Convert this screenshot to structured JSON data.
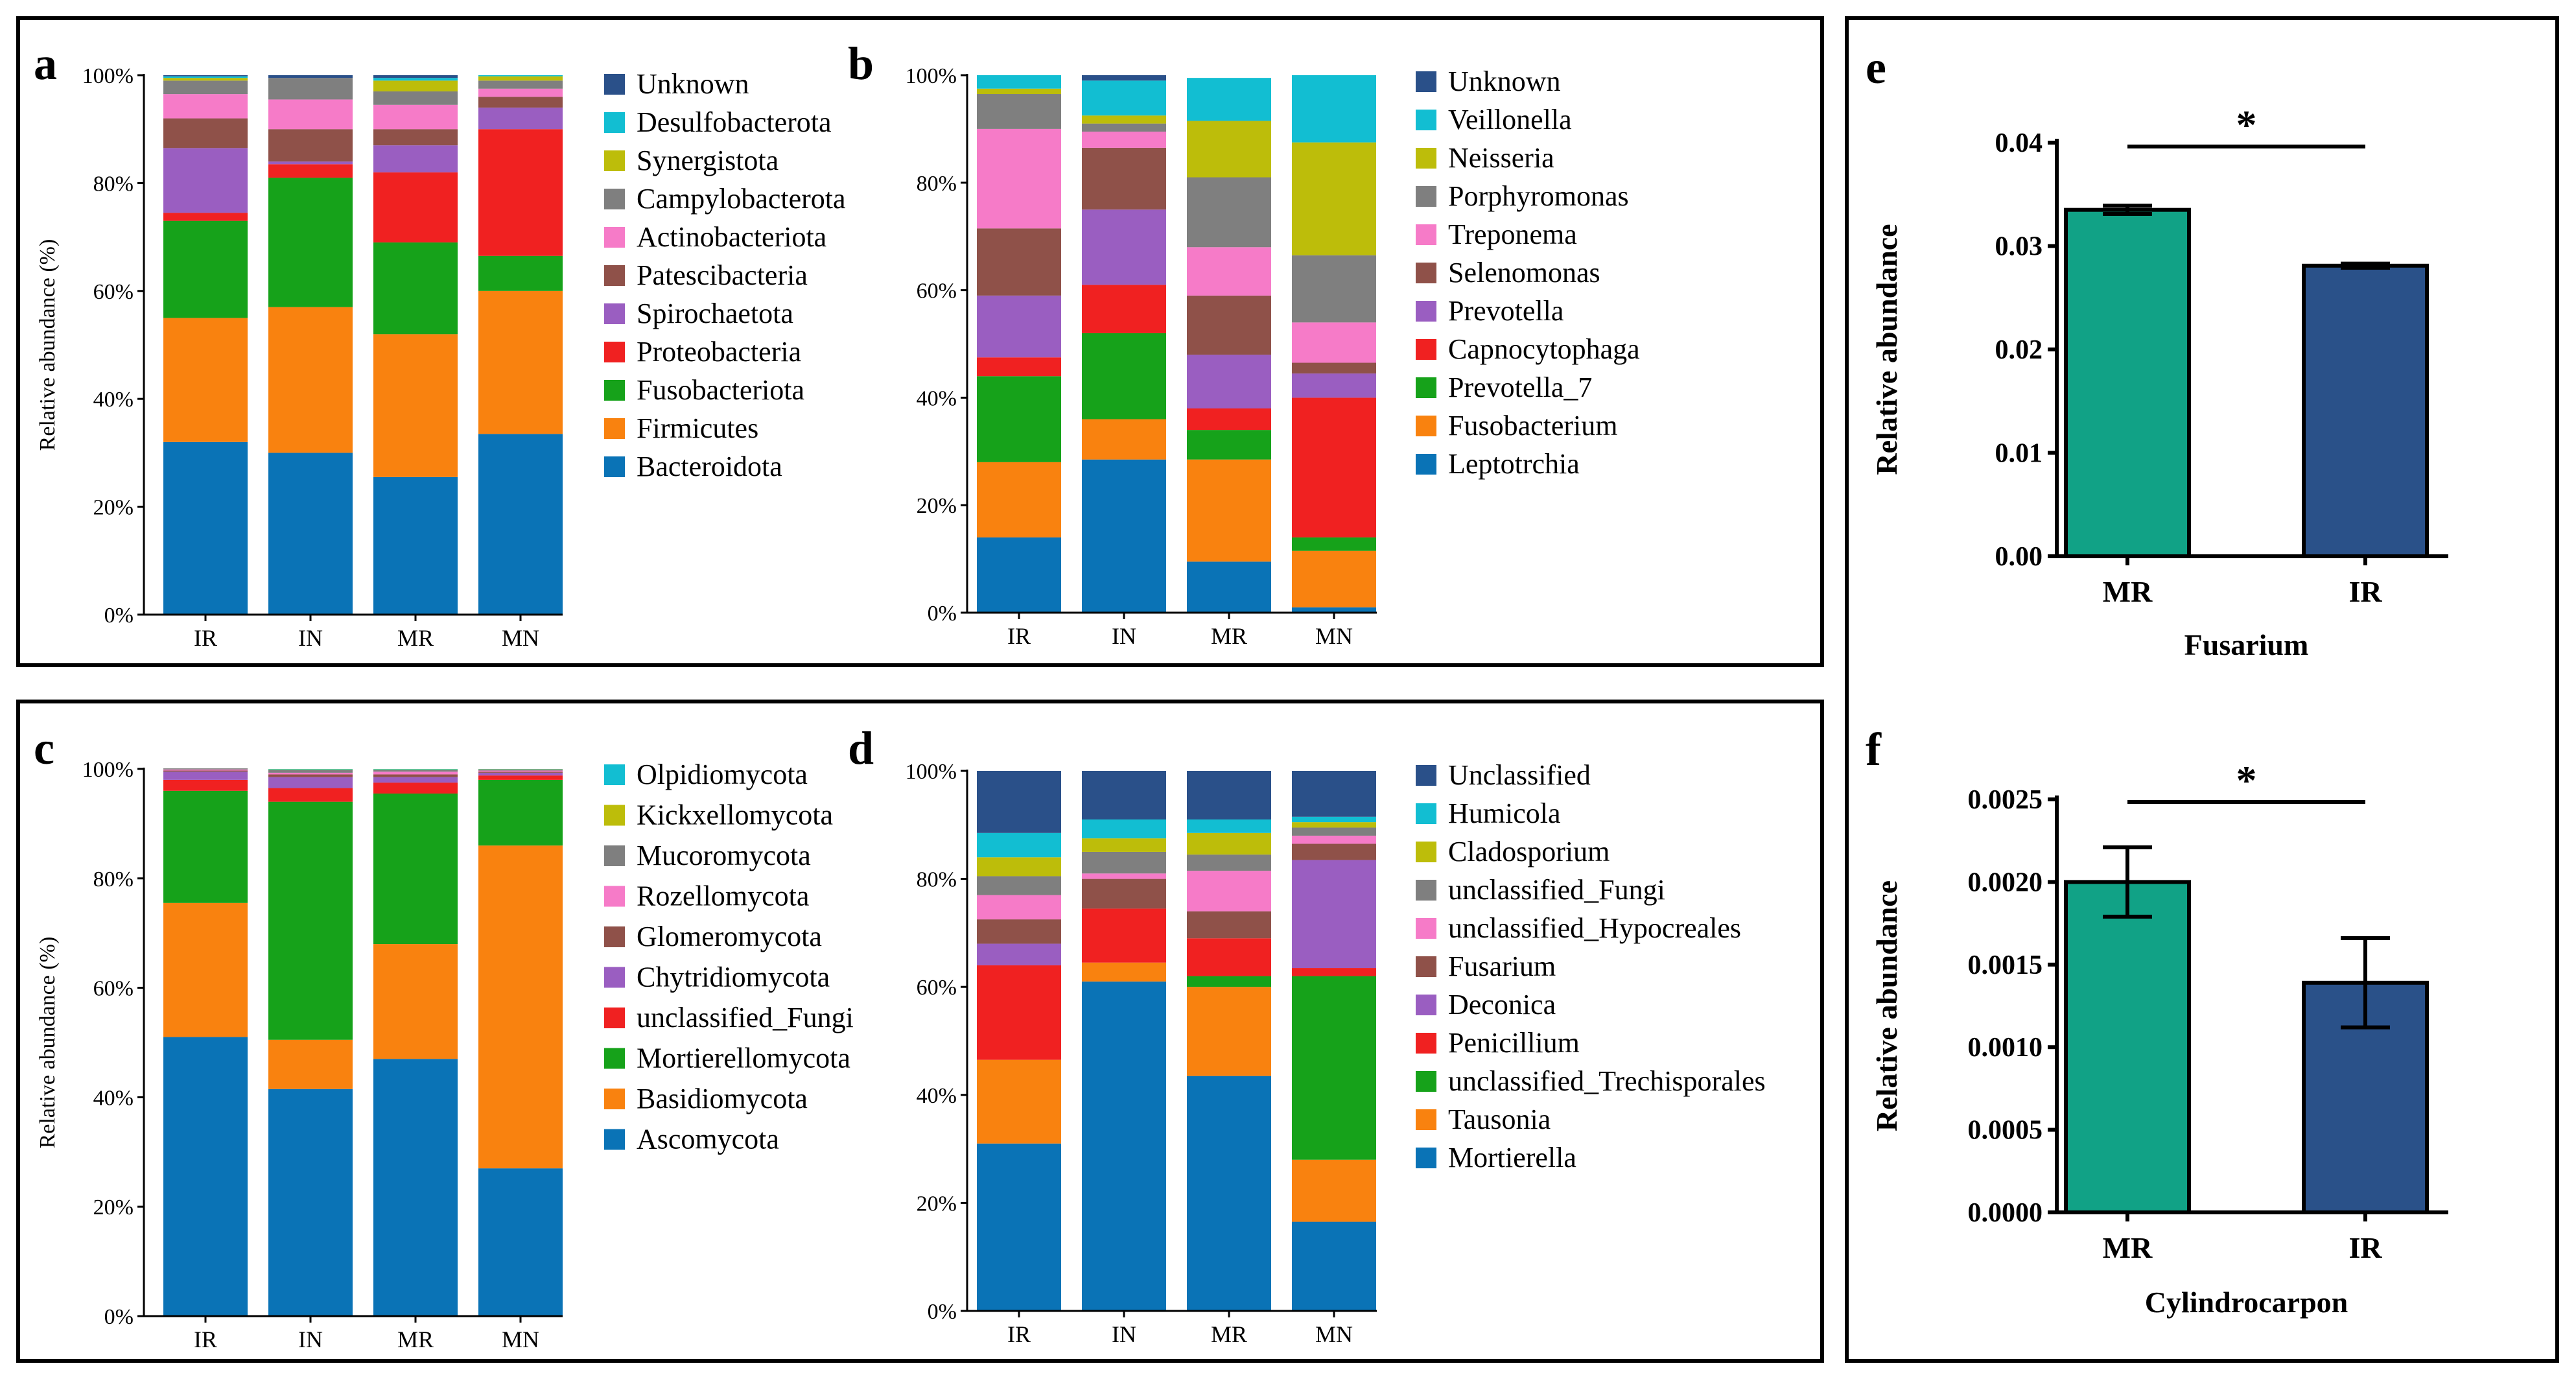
{
  "colors": {
    "c1": "#0a73b6",
    "c2": "#f9820f",
    "c3": "#16a21a",
    "c4": "#f02121",
    "c5": "#9a5ec1",
    "c6": "#8f5149",
    "c7": "#f67bc8",
    "c8": "#7f7f7f",
    "c9": "#bdbd0a",
    "c10": "#12bed2",
    "c11": "#2a5089",
    "mr": "#11a286",
    "ir": "#2a5189"
  },
  "labels": {
    "a": "a",
    "b": "b",
    "c": "c",
    "d": "d",
    "e": "e",
    "f": "f"
  },
  "chart_data": [
    {
      "id": "a",
      "type": "bar",
      "stacked": true,
      "ylabel": "Relative abundance (%)",
      "yticks": [
        "0%",
        "20%",
        "40%",
        "60%",
        "80%",
        "100%"
      ],
      "categories": [
        "IR",
        "IN",
        "MR",
        "MN"
      ],
      "series": [
        {
          "name": "Bacteroidota",
          "color": "c1",
          "values": [
            32,
            30,
            25.5,
            33.5
          ]
        },
        {
          "name": "Firmicutes",
          "color": "c2",
          "values": [
            23,
            27,
            26.5,
            26.5
          ]
        },
        {
          "name": "Fusobacteriota",
          "color": "c3",
          "values": [
            18,
            24,
            17,
            6.5
          ]
        },
        {
          "name": "Proteobacteria",
          "color": "c4",
          "values": [
            1.5,
            2.5,
            13,
            23.5
          ]
        },
        {
          "name": "Spirochaetota",
          "color": "c5",
          "values": [
            12,
            0.5,
            5,
            4
          ]
        },
        {
          "name": "Patescibacteria",
          "color": "c6",
          "values": [
            5.5,
            6,
            3,
            2
          ]
        },
        {
          "name": "Actinobacteriota",
          "color": "c7",
          "values": [
            4.5,
            5.5,
            4.5,
            1.5
          ]
        },
        {
          "name": "Campylobacterota",
          "color": "c8",
          "values": [
            2.5,
            4,
            2.5,
            1.5
          ]
        },
        {
          "name": "Synergistota",
          "color": "c9",
          "values": [
            0.5,
            0,
            2,
            0.8
          ]
        },
        {
          "name": "Desulfobacterota",
          "color": "c10",
          "values": [
            0.3,
            0,
            0.5,
            0.2
          ]
        },
        {
          "name": "Unknown",
          "color": "c11",
          "values": [
            0.2,
            0.5,
            0.5,
            0
          ]
        }
      ]
    },
    {
      "id": "b",
      "type": "bar",
      "stacked": true,
      "ylabel": "",
      "yticks": [
        "0%",
        "20%",
        "40%",
        "60%",
        "80%",
        "100%"
      ],
      "categories": [
        "IR",
        "IN",
        "MR",
        "MN"
      ],
      "series": [
        {
          "name": "Leptotrchia",
          "color": "c1",
          "values": [
            14,
            28.5,
            9.5,
            1
          ]
        },
        {
          "name": "Fusobacterium",
          "color": "c2",
          "values": [
            14,
            7.5,
            19,
            10.5
          ]
        },
        {
          "name": "Prevotella_7",
          "color": "c3",
          "values": [
            16,
            16,
            5.5,
            2.5
          ]
        },
        {
          "name": "Capnocytophaga",
          "color": "c4",
          "values": [
            3.5,
            9,
            4,
            26
          ]
        },
        {
          "name": "Prevotella",
          "color": "c5",
          "values": [
            11.5,
            14,
            10,
            4.5
          ]
        },
        {
          "name": "Selenomonas",
          "color": "c6",
          "values": [
            12.5,
            11.5,
            11,
            2
          ]
        },
        {
          "name": "Treponema",
          "color": "c7",
          "values": [
            18.5,
            3,
            9,
            7.5
          ]
        },
        {
          "name": "Porphyromonas",
          "color": "c8",
          "values": [
            6.5,
            1.5,
            13,
            12.5
          ]
        },
        {
          "name": "Neisseria",
          "color": "c9",
          "values": [
            1,
            1.5,
            10.5,
            21
          ]
        },
        {
          "name": "Veillonella",
          "color": "c10",
          "values": [
            2.5,
            6.5,
            8,
            12.5
          ]
        },
        {
          "name": "Unknown",
          "color": "c11",
          "values": [
            0,
            1,
            0,
            0
          ]
        }
      ]
    },
    {
      "id": "c",
      "type": "bar",
      "stacked": true,
      "ylabel": "Relative abundance (%)",
      "yticks": [
        "0%",
        "20%",
        "40%",
        "60%",
        "80%",
        "100%"
      ],
      "categories": [
        "IR",
        "IN",
        "MR",
        "MN"
      ],
      "series": [
        {
          "name": "Ascomycota",
          "color": "c1",
          "values": [
            51,
            41.5,
            47,
            27
          ]
        },
        {
          "name": "Basidiomycota",
          "color": "c2",
          "values": [
            24.5,
            9,
            21,
            59
          ]
        },
        {
          "name": "Mortierellomycota",
          "color": "c3",
          "values": [
            20.5,
            43.5,
            27.5,
            12
          ]
        },
        {
          "name": "unclassified_Fungi",
          "color": "c4",
          "values": [
            2,
            2.5,
            2,
            0.8
          ]
        },
        {
          "name": "Chytridiomycota",
          "color": "c5",
          "values": [
            1.5,
            2,
            1,
            0.5
          ]
        },
        {
          "name": "Glomeromycota",
          "color": "c6",
          "values": [
            0.2,
            0.5,
            0.5,
            0.2
          ]
        },
        {
          "name": "Rozellomycota",
          "color": "c7",
          "values": [
            0.2,
            0.3,
            0.5,
            0.2
          ]
        },
        {
          "name": "Mucoromycota",
          "color": "c8",
          "values": [
            0.2,
            0.5,
            0.3,
            0.2
          ]
        },
        {
          "name": "Kickxellomycota",
          "color": "c9",
          "values": [
            0,
            0.1,
            0.1,
            0.05
          ]
        },
        {
          "name": "Olpidiomycota",
          "color": "c10",
          "values": [
            0,
            0.1,
            0.1,
            0.05
          ]
        }
      ]
    },
    {
      "id": "d",
      "type": "bar",
      "stacked": true,
      "ylabel": "",
      "yticks": [
        "0%",
        "20%",
        "40%",
        "60%",
        "80%",
        "100%"
      ],
      "categories": [
        "IR",
        "IN",
        "MR",
        "MN"
      ],
      "series": [
        {
          "name": "Mortierella",
          "color": "c1",
          "values": [
            31,
            61,
            43.5,
            16.5
          ]
        },
        {
          "name": "Tausonia",
          "color": "c2",
          "values": [
            15.5,
            3.5,
            16.5,
            11.5
          ]
        },
        {
          "name": "unclassified_Trechisporales",
          "color": "c3",
          "values": [
            0,
            0,
            2,
            34
          ]
        },
        {
          "name": "Penicillium",
          "color": "c4",
          "values": [
            17.5,
            10,
            7,
            1.5
          ]
        },
        {
          "name": "Deconica",
          "color": "c5",
          "values": [
            4,
            0,
            0,
            20
          ]
        },
        {
          "name": "Fusarium",
          "color": "c6",
          "values": [
            4.5,
            5.5,
            5,
            3
          ]
        },
        {
          "name": "unclassified_Hypocreales",
          "color": "c7",
          "values": [
            4.5,
            1,
            7.5,
            1.5
          ]
        },
        {
          "name": "unclassified_Fungi",
          "color": "c8",
          "values": [
            3.5,
            4,
            3,
            1.5
          ]
        },
        {
          "name": "Cladosporium",
          "color": "c9",
          "values": [
            3.5,
            2.5,
            4,
            1
          ]
        },
        {
          "name": "Humicola",
          "color": "c10",
          "values": [
            4.5,
            3.5,
            2.5,
            1
          ]
        },
        {
          "name": "Unclassified",
          "color": "c11",
          "values": [
            11.5,
            9,
            9,
            8.5
          ]
        }
      ]
    },
    {
      "id": "e",
      "type": "bar",
      "title": "Fusarium",
      "ylabel": "Relative abundance",
      "yticks": [
        "0.00",
        "0.01",
        "0.02",
        "0.03",
        "0.04"
      ],
      "ylim": [
        0,
        0.04
      ],
      "categories": [
        "MR",
        "IR"
      ],
      "values": [
        0.0335,
        0.0281
      ],
      "errors": [
        0.0004,
        0.0002
      ],
      "significance": "*"
    },
    {
      "id": "f",
      "type": "bar",
      "title": "Cylindrocarpon",
      "ylabel": "Relative abundance",
      "yticks": [
        "0.0000",
        "0.0005",
        "0.0010",
        "0.0015",
        "0.0020",
        "0.0025"
      ],
      "ylim": [
        0,
        0.0025
      ],
      "categories": [
        "MR",
        "IR"
      ],
      "values": [
        0.002,
        0.00139
      ],
      "errors": [
        0.00021,
        0.00027
      ],
      "significance": "*"
    }
  ]
}
